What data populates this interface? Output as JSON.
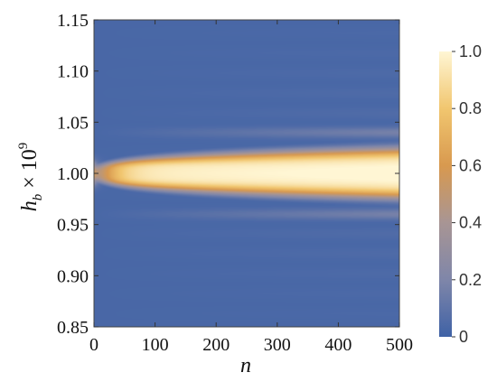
{
  "chart_data": {
    "type": "heatmap",
    "title": "",
    "xlabel": "n",
    "ylabel": {
      "base": "h",
      "subscript": "b",
      "times": " × 10",
      "exponent": "9"
    },
    "xlim": [
      0,
      500
    ],
    "ylim": [
      0.85,
      1.15
    ],
    "x_ticks": [
      0,
      100,
      200,
      300,
      400,
      500
    ],
    "y_ticks": [
      0.85,
      0.9,
      0.95,
      1.0,
      1.05,
      1.1,
      1.15
    ],
    "x_tick_labels": [
      "0",
      "100",
      "200",
      "300",
      "400",
      "500"
    ],
    "y_tick_labels": [
      "0.85",
      "0.90",
      "0.95",
      "1.00",
      "1.05",
      "1.10",
      "1.15"
    ],
    "colorbar": {
      "min": 0,
      "max": 1,
      "ticks": [
        0,
        0.2,
        0.4,
        0.6,
        0.8,
        1.0
      ],
      "tick_labels": [
        "0",
        "0.2",
        "0.4",
        "0.6",
        "0.8",
        "1.0"
      ],
      "colors": [
        "#3f62a6",
        "#7f86a9",
        "#a89594",
        "#d8994f",
        "#f1c66f",
        "#fff6d4"
      ]
    },
    "features": {
      "central_band_value": 1.0,
      "central_band_halfwidth_at_n500": 0.02,
      "side_fringes": [
        0.96,
        1.04
      ],
      "background_value": 0.03
    },
    "grid": false,
    "legend": "colorbar-right"
  }
}
